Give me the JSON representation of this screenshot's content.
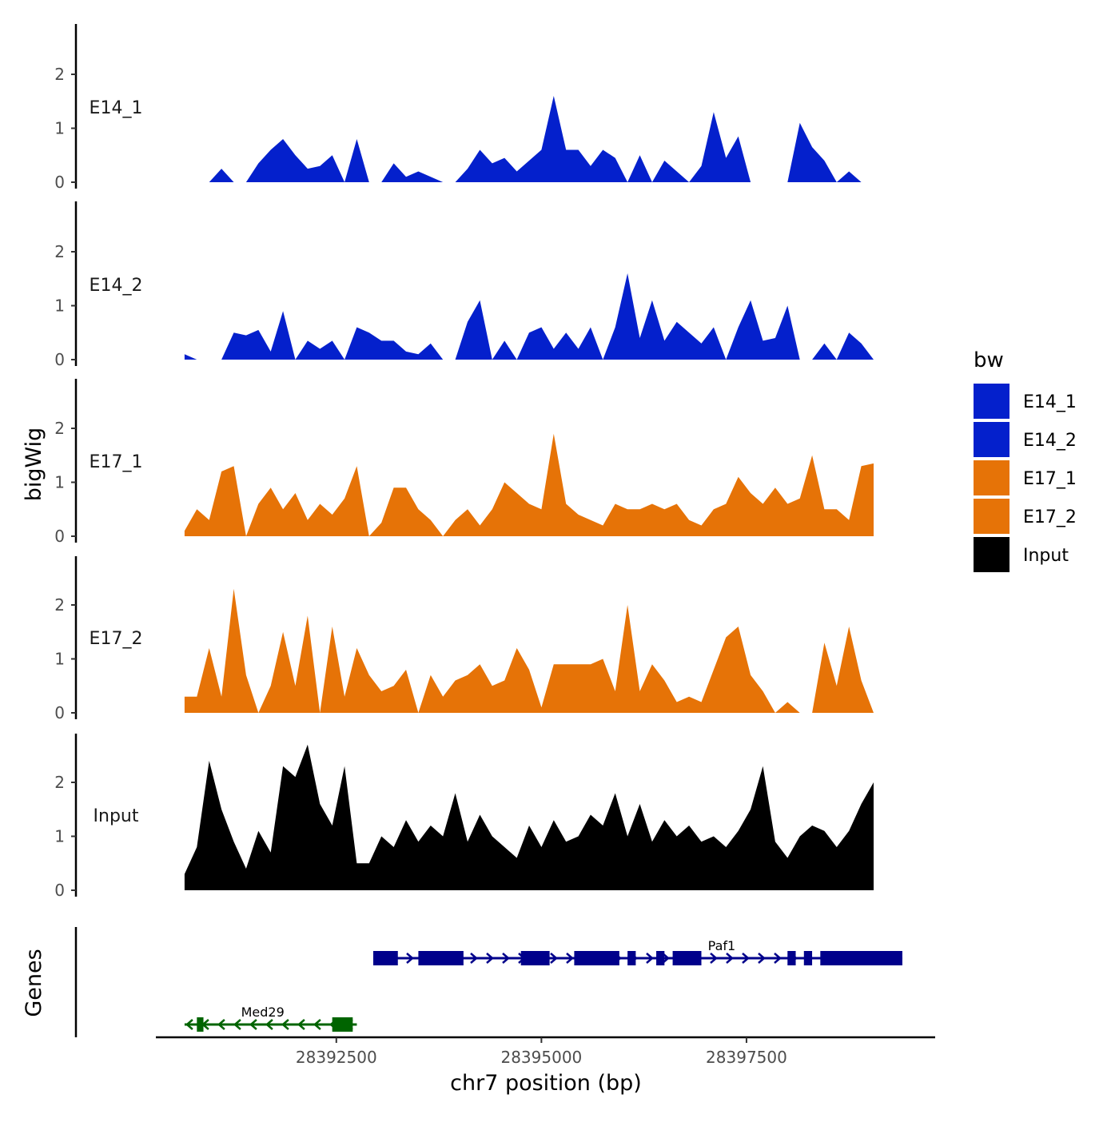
{
  "chart_data": {
    "type": "area",
    "chromosome": "chr7",
    "xlabel": "chr7 position (bp)",
    "ylabel": "bigWig",
    "gene_track_label": "Genes",
    "xlim": [
      28390300,
      28399800
    ],
    "ylim": [
      0,
      2.9
    ],
    "x_ticks": [
      28392500,
      28395000,
      28397500
    ],
    "x_tick_labels": [
      "28392500",
      "28395000",
      "28397500"
    ],
    "y_ticks": [
      0,
      1,
      2
    ],
    "y_tick_labels": [
      "0",
      "1",
      "2"
    ],
    "legend": {
      "title": "bw",
      "placement": "right",
      "entries": [
        {
          "name": "E14_1",
          "color": "#0420cc"
        },
        {
          "name": "E14_2",
          "color": "#0420cc"
        },
        {
          "name": "E17_1",
          "color": "#e67307"
        },
        {
          "name": "E17_2",
          "color": "#e67307"
        },
        {
          "name": "Input",
          "color": "#000000"
        }
      ]
    },
    "x": [
      28390650,
      28390800,
      28390950,
      28391100,
      28391250,
      28391400,
      28391550,
      28391700,
      28391850,
      28392000,
      28392150,
      28392300,
      28392450,
      28392600,
      28392750,
      28392900,
      28393050,
      28393200,
      28393350,
      28393500,
      28393650,
      28393800,
      28393950,
      28394100,
      28394250,
      28394400,
      28394550,
      28394700,
      28394850,
      28395000,
      28395150,
      28395300,
      28395450,
      28395600,
      28395750,
      28395900,
      28396050,
      28396200,
      28396350,
      28396500,
      28396650,
      28396800,
      28396950,
      28397100,
      28397250,
      28397400,
      28397550,
      28397700,
      28397850,
      28398000,
      28398150,
      28398300,
      28398450,
      28398600,
      28398750,
      28398900,
      28399050
    ],
    "series": [
      {
        "name": "E14_1",
        "color": "#0420cc",
        "values": [
          0,
          0,
          0,
          0.25,
          0,
          0,
          0.35,
          0.6,
          0.8,
          0.5,
          0.25,
          0.3,
          0.5,
          0,
          0.8,
          0,
          0,
          0.35,
          0.1,
          0.2,
          0.1,
          0,
          0,
          0.25,
          0.6,
          0.35,
          0.45,
          0.2,
          0.4,
          0.6,
          1.6,
          0.6,
          0.6,
          0.3,
          0.6,
          0.45,
          0,
          0.5,
          0,
          0.4,
          0.2,
          0,
          0.3,
          1.3,
          0.45,
          0.85,
          0,
          0,
          0,
          0,
          1.1,
          0.65,
          0.4,
          0,
          0.2,
          0,
          0
        ]
      },
      {
        "name": "E14_2",
        "color": "#0420cc",
        "values": [
          0.1,
          0,
          0,
          0,
          0.5,
          0.45,
          0.55,
          0.15,
          0.9,
          0,
          0.35,
          0.2,
          0.35,
          0,
          0.6,
          0.5,
          0.35,
          0.35,
          0.15,
          0.1,
          0.3,
          0,
          0,
          0.7,
          1.1,
          0,
          0.35,
          0,
          0.5,
          0.6,
          0.2,
          0.5,
          0.2,
          0.6,
          0,
          0.6,
          1.6,
          0.4,
          1.1,
          0.35,
          0.7,
          0.5,
          0.3,
          0.6,
          0,
          0.6,
          1.1,
          0.35,
          0.4,
          1.0,
          0,
          0,
          0.3,
          0,
          0.5,
          0.3,
          0
        ]
      },
      {
        "name": "E17_1",
        "color": "#e67307",
        "values": [
          0.1,
          0.5,
          0.3,
          1.2,
          1.3,
          0,
          0.6,
          0.9,
          0.5,
          0.8,
          0.3,
          0.6,
          0.4,
          0.7,
          1.3,
          0,
          0.25,
          0.9,
          0.9,
          0.5,
          0.3,
          0,
          0.3,
          0.5,
          0.2,
          0.5,
          1.0,
          0.8,
          0.6,
          0.5,
          1.9,
          0.6,
          0.4,
          0.3,
          0.2,
          0.6,
          0.5,
          0.5,
          0.6,
          0.5,
          0.6,
          0.3,
          0.2,
          0.5,
          0.6,
          1.1,
          0.8,
          0.6,
          0.9,
          0.6,
          0.7,
          1.5,
          0.5,
          0.5,
          0.3,
          1.3,
          1.35
        ]
      },
      {
        "name": "E17_2",
        "color": "#e67307",
        "values": [
          0.3,
          0.3,
          1.2,
          0.3,
          2.3,
          0.7,
          0,
          0.5,
          1.5,
          0.5,
          1.8,
          0,
          1.6,
          0.3,
          1.2,
          0.7,
          0.4,
          0.5,
          0.8,
          0,
          0.7,
          0.3,
          0.6,
          0.7,
          0.9,
          0.5,
          0.6,
          1.2,
          0.8,
          0.1,
          0.9,
          0.9,
          0.9,
          0.9,
          1.0,
          0.4,
          2.0,
          0.4,
          0.9,
          0.6,
          0.2,
          0.3,
          0.2,
          0.8,
          1.4,
          1.6,
          0.7,
          0.4,
          0,
          0.2,
          0,
          0,
          1.3,
          0.5,
          1.6,
          0.6,
          0
        ]
      },
      {
        "name": "Input",
        "color": "#000000",
        "values": [
          0.3,
          0.8,
          2.4,
          1.5,
          0.9,
          0.4,
          1.1,
          0.7,
          2.3,
          2.1,
          2.7,
          1.6,
          1.2,
          2.3,
          0.5,
          0.5,
          1.0,
          0.8,
          1.3,
          0.9,
          1.2,
          1.0,
          1.8,
          0.9,
          1.4,
          1.0,
          0.8,
          0.6,
          1.2,
          0.8,
          1.3,
          0.9,
          1.0,
          1.4,
          1.2,
          1.8,
          1.0,
          1.6,
          0.9,
          1.3,
          1.0,
          1.2,
          0.9,
          1.0,
          0.8,
          1.1,
          1.5,
          2.3,
          0.9,
          0.6,
          1.0,
          1.2,
          1.1,
          0.8,
          1.1,
          1.6,
          2.0
        ]
      }
    ],
    "genes": [
      {
        "name": "Paf1",
        "color": "#00008b",
        "start": 28392950,
        "end": 28399400,
        "strand": "+",
        "exons": [
          [
            28392950,
            28393250
          ],
          [
            28393500,
            28394050
          ],
          [
            28394750,
            28395100
          ],
          [
            28395400,
            28395950
          ],
          [
            28396050,
            28396150
          ],
          [
            28396400,
            28396500
          ],
          [
            28396600,
            28396950
          ],
          [
            28398000,
            28398100
          ],
          [
            28398200,
            28398300
          ],
          [
            28398400,
            28399400
          ]
        ]
      },
      {
        "name": "Med29",
        "color": "#006400",
        "start": 28390650,
        "end": 28392750,
        "strand": "-",
        "exons": [
          [
            28390800,
            28390880
          ],
          [
            28392450,
            28392700
          ]
        ]
      }
    ]
  }
}
